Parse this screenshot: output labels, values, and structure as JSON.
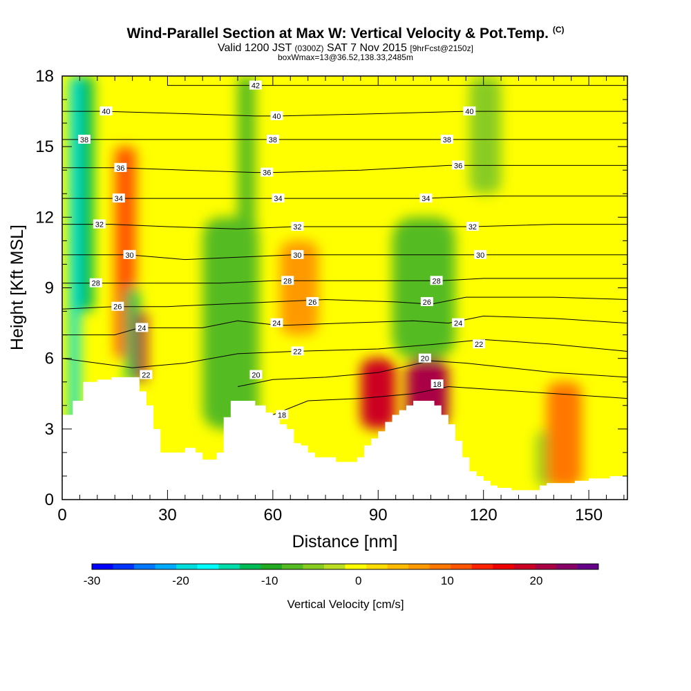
{
  "header": {
    "title": "Wind-Parallel Section at Max W: Vertical Velocity & Pot.Temp.",
    "title_note": "(C)",
    "valid_prefix": "Valid 1200 JST",
    "valid_zulu": "(0300Z)",
    "valid_date": "SAT 7 Nov 2015",
    "forecast": "[9hrFcst@2150z]",
    "box_info": "boxWmax=13@36.52,138.33,2485m"
  },
  "colors": {
    "background": "#ffffff",
    "terrain": "#ffffff",
    "contour_line": "#000000",
    "near_zero": "#ffff00"
  },
  "chart_data": {
    "type": "heatmap",
    "xlabel": "Distance [nm]",
    "ylabel": "Height [Kft MSL]",
    "xlim": [
      0,
      161
    ],
    "ylim": [
      0,
      18
    ],
    "x_ticks": [
      0,
      30,
      60,
      90,
      120,
      150
    ],
    "y_ticks": [
      0,
      3,
      6,
      9,
      12,
      15,
      18
    ],
    "grid": false,
    "field": "Vertical Velocity",
    "overlay": "Potential temperature contours (C)",
    "colorbar": {
      "label": "Vertical Velocity [cm/s]",
      "tick_values": [
        -30,
        -20,
        -10,
        0,
        10,
        20
      ],
      "range": [
        -30,
        27
      ],
      "colors": [
        "#0000ff",
        "#0033ff",
        "#0077ff",
        "#00aaff",
        "#00dddd",
        "#00ffff",
        "#00ddaa",
        "#00bb55",
        "#22aa22",
        "#55bb22",
        "#88cc22",
        "#bbdd22",
        "#ffff00",
        "#ffdd00",
        "#ffbb00",
        "#ff9900",
        "#ff7700",
        "#ff5500",
        "#ff2200",
        "#ee0000",
        "#cc0022",
        "#aa0044",
        "#880066",
        "#660088"
      ]
    },
    "terrain_kft": [
      [
        0,
        3.6
      ],
      [
        3,
        4.2
      ],
      [
        6,
        5.0
      ],
      [
        10,
        5.1
      ],
      [
        14,
        5.2
      ],
      [
        19,
        5.2
      ],
      [
        22,
        4.6
      ],
      [
        24,
        4.0
      ],
      [
        26,
        3.0
      ],
      [
        28,
        2.0
      ],
      [
        32,
        2.0
      ],
      [
        35,
        2.2
      ],
      [
        38,
        2.0
      ],
      [
        40,
        1.7
      ],
      [
        42,
        1.7
      ],
      [
        44,
        2.0
      ],
      [
        46,
        3.5
      ],
      [
        48,
        4.2
      ],
      [
        51,
        4.2
      ],
      [
        55,
        4.0
      ],
      [
        58,
        3.7
      ],
      [
        60,
        3.6
      ],
      [
        62,
        3.2
      ],
      [
        64,
        3.0
      ],
      [
        66,
        2.4
      ],
      [
        68,
        2.3
      ],
      [
        70,
        2.0
      ],
      [
        72,
        1.8
      ],
      [
        74,
        1.8
      ],
      [
        78,
        1.6
      ],
      [
        80,
        1.6
      ],
      [
        82,
        1.6
      ],
      [
        84,
        1.8
      ],
      [
        86,
        2.3
      ],
      [
        88,
        2.6
      ],
      [
        90,
        2.9
      ],
      [
        92,
        3.3
      ],
      [
        94,
        3.6
      ],
      [
        96,
        3.8
      ],
      [
        98,
        4.0
      ],
      [
        100,
        4.2
      ],
      [
        104,
        4.2
      ],
      [
        106,
        4.0
      ],
      [
        108,
        3.6
      ],
      [
        110,
        3.2
      ],
      [
        112,
        2.5
      ],
      [
        114,
        1.8
      ],
      [
        116,
        1.2
      ],
      [
        118,
        1.0
      ],
      [
        120,
        0.8
      ],
      [
        122,
        0.6
      ],
      [
        124,
        0.5
      ],
      [
        126,
        0.5
      ],
      [
        128,
        0.4
      ],
      [
        132,
        0.4
      ],
      [
        134,
        0.4
      ],
      [
        136,
        0.6
      ],
      [
        138,
        0.7
      ],
      [
        142,
        0.7
      ],
      [
        146,
        0.8
      ],
      [
        150,
        0.9
      ],
      [
        156,
        1.0
      ],
      [
        161,
        1.0
      ]
    ],
    "velocity_cells": [
      {
        "x": [
          2,
          5
        ],
        "y": [
          0,
          18
        ],
        "value": -20
      },
      {
        "x": [
          5,
          9
        ],
        "y": [
          8,
          18
        ],
        "value": -12
      },
      {
        "x": [
          15,
          21
        ],
        "y": [
          6,
          15
        ],
        "value": 12
      },
      {
        "x": [
          18,
          22
        ],
        "y": [
          5,
          9
        ],
        "value": -12
      },
      {
        "x": [
          21,
          24
        ],
        "y": [
          5,
          8
        ],
        "value": 22
      },
      {
        "x": [
          40,
          56
        ],
        "y": [
          3,
          12
        ],
        "value": -8
      },
      {
        "x": [
          50,
          55
        ],
        "y": [
          10,
          18
        ],
        "value": -8
      },
      {
        "x": [
          62,
          73
        ],
        "y": [
          7,
          11
        ],
        "value": 6
      },
      {
        "x": [
          85,
          95
        ],
        "y": [
          3,
          6
        ],
        "value": 18
      },
      {
        "x": [
          98,
          110
        ],
        "y": [
          3,
          6
        ],
        "value": 22
      },
      {
        "x": [
          94,
          112
        ],
        "y": [
          6,
          12
        ],
        "value": -8
      },
      {
        "x": [
          116,
          125
        ],
        "y": [
          13,
          18
        ],
        "value": -6
      },
      {
        "x": [
          135,
          145
        ],
        "y": [
          0.5,
          3
        ],
        "value": -6
      },
      {
        "x": [
          138,
          148
        ],
        "y": [
          0.5,
          5
        ],
        "value": 8
      }
    ],
    "theta_contours": [
      {
        "label": "18",
        "points": [
          [
            60,
            3.6
          ],
          [
            70,
            4.2
          ],
          [
            85,
            4.3
          ],
          [
            100,
            4.5
          ],
          [
            110,
            4.8
          ],
          [
            130,
            4.6
          ],
          [
            161,
            4.3
          ]
        ]
      },
      {
        "label": "20",
        "points": [
          [
            50,
            4.8
          ],
          [
            60,
            5.1
          ],
          [
            75,
            5.2
          ],
          [
            90,
            5.4
          ],
          [
            105,
            5.9
          ],
          [
            115,
            5.8
          ],
          [
            140,
            5.4
          ],
          [
            161,
            5.2
          ]
        ]
      },
      {
        "label": "22",
        "points": [
          [
            0,
            6.0
          ],
          [
            20,
            5.6
          ],
          [
            35,
            5.8
          ],
          [
            50,
            6.2
          ],
          [
            66,
            6.3
          ],
          [
            90,
            6.4
          ],
          [
            106,
            6.6
          ],
          [
            120,
            6.8
          ],
          [
            140,
            6.6
          ],
          [
            161,
            6.3
          ]
        ]
      },
      {
        "label": "24",
        "points": [
          [
            0,
            7.0
          ],
          [
            15,
            7.0
          ],
          [
            22,
            7.3
          ],
          [
            40,
            7.3
          ],
          [
            50,
            7.6
          ],
          [
            62,
            7.4
          ],
          [
            80,
            7.5
          ],
          [
            100,
            7.6
          ],
          [
            110,
            7.5
          ],
          [
            120,
            7.8
          ],
          [
            140,
            7.7
          ],
          [
            161,
            7.5
          ]
        ]
      },
      {
        "label": "26",
        "points": [
          [
            0,
            8.1
          ],
          [
            15,
            8.2
          ],
          [
            30,
            8.2
          ],
          [
            45,
            8.3
          ],
          [
            60,
            8.4
          ],
          [
            75,
            8.5
          ],
          [
            95,
            8.4
          ],
          [
            105,
            8.3
          ],
          [
            115,
            8.6
          ],
          [
            140,
            8.6
          ],
          [
            161,
            8.5
          ]
        ]
      },
      {
        "label": "28",
        "points": [
          [
            0,
            9.2
          ],
          [
            10,
            9.2
          ],
          [
            30,
            9.2
          ],
          [
            45,
            9.2
          ],
          [
            60,
            9.3
          ],
          [
            75,
            9.3
          ],
          [
            95,
            9.3
          ],
          [
            108,
            9.3
          ],
          [
            120,
            9.4
          ],
          [
            140,
            9.4
          ],
          [
            161,
            9.4
          ]
        ]
      },
      {
        "label": "30",
        "points": [
          [
            0,
            10.4
          ],
          [
            19,
            10.4
          ],
          [
            35,
            10.2
          ],
          [
            50,
            10.3
          ],
          [
            66,
            10.4
          ],
          [
            85,
            10.4
          ],
          [
            105,
            10.4
          ],
          [
            120,
            10.4
          ],
          [
            140,
            10.4
          ],
          [
            161,
            10.4
          ]
        ]
      },
      {
        "label": "32",
        "points": [
          [
            0,
            11.7
          ],
          [
            14,
            11.7
          ],
          [
            30,
            11.6
          ],
          [
            50,
            11.5
          ],
          [
            66,
            11.6
          ],
          [
            85,
            11.6
          ],
          [
            105,
            11.6
          ],
          [
            117,
            11.6
          ],
          [
            140,
            11.7
          ],
          [
            161,
            11.7
          ]
        ]
      },
      {
        "label": "34",
        "points": [
          [
            0,
            12.8
          ],
          [
            15,
            12.8
          ],
          [
            30,
            12.8
          ],
          [
            50,
            12.8
          ],
          [
            62,
            12.8
          ],
          [
            85,
            12.8
          ],
          [
            103,
            12.8
          ],
          [
            120,
            12.9
          ],
          [
            140,
            12.9
          ],
          [
            161,
            12.9
          ]
        ]
      },
      {
        "label": "36",
        "points": [
          [
            0,
            14.1
          ],
          [
            16,
            14.1
          ],
          [
            35,
            14.0
          ],
          [
            55,
            13.9
          ],
          [
            60,
            13.9
          ],
          [
            85,
            14.0
          ],
          [
            110,
            14.2
          ],
          [
            125,
            14.2
          ],
          [
            161,
            14.2
          ]
        ]
      },
      {
        "label": "38",
        "points": [
          [
            0,
            15.3
          ],
          [
            6,
            15.3
          ],
          [
            30,
            15.3
          ],
          [
            55,
            15.3
          ],
          [
            60,
            15.3
          ],
          [
            85,
            15.3
          ],
          [
            108,
            15.3
          ],
          [
            125,
            15.3
          ],
          [
            161,
            15.3
          ]
        ]
      },
      {
        "label": "40",
        "points": [
          [
            0,
            16.5
          ],
          [
            12,
            16.5
          ],
          [
            35,
            16.4
          ],
          [
            55,
            16.3
          ],
          [
            62,
            16.3
          ],
          [
            90,
            16.4
          ],
          [
            115,
            16.5
          ],
          [
            140,
            16.5
          ],
          [
            161,
            16.5
          ]
        ]
      },
      {
        "label": "42",
        "points": [
          [
            30,
            17.6
          ],
          [
            55,
            17.6
          ],
          [
            70,
            17.6
          ],
          [
            90,
            17.6
          ],
          [
            110,
            17.6
          ],
          [
            161,
            17.6
          ]
        ]
      }
    ],
    "theta_label_positions": [
      {
        "label": "40",
        "x": 12.5,
        "y": 16.5
      },
      {
        "label": "38",
        "x": 6.3,
        "y": 15.3
      },
      {
        "label": "36",
        "x": 16.6,
        "y": 14.1
      },
      {
        "label": "34",
        "x": 16.1,
        "y": 12.8
      },
      {
        "label": "32",
        "x": 10.6,
        "y": 11.7
      },
      {
        "label": "30",
        "x": 19.2,
        "y": 10.4
      },
      {
        "label": "28",
        "x": 9.6,
        "y": 9.2
      },
      {
        "label": "26",
        "x": 15.8,
        "y": 8.2
      },
      {
        "label": "24",
        "x": 22.7,
        "y": 7.3
      },
      {
        "label": "22",
        "x": 23.9,
        "y": 5.3
      },
      {
        "label": "42",
        "x": 55.1,
        "y": 17.6
      },
      {
        "label": "40",
        "x": 61.1,
        "y": 16.3
      },
      {
        "label": "38",
        "x": 60.0,
        "y": 15.3
      },
      {
        "label": "36",
        "x": 58.3,
        "y": 13.9
      },
      {
        "label": "34",
        "x": 61.5,
        "y": 12.8
      },
      {
        "label": "32",
        "x": 67.0,
        "y": 11.6
      },
      {
        "label": "30",
        "x": 67.0,
        "y": 10.4
      },
      {
        "label": "28",
        "x": 64.2,
        "y": 9.3
      },
      {
        "label": "26",
        "x": 71.3,
        "y": 8.4
      },
      {
        "label": "24",
        "x": 61.1,
        "y": 7.5
      },
      {
        "label": "22",
        "x": 67.0,
        "y": 6.3
      },
      {
        "label": "20",
        "x": 55.2,
        "y": 5.3
      },
      {
        "label": "18",
        "x": 62.6,
        "y": 3.6
      },
      {
        "label": "40",
        "x": 116.0,
        "y": 16.5
      },
      {
        "label": "38",
        "x": 109.6,
        "y": 15.3
      },
      {
        "label": "36",
        "x": 112.8,
        "y": 14.2
      },
      {
        "label": "34",
        "x": 103.6,
        "y": 12.8
      },
      {
        "label": "32",
        "x": 116.9,
        "y": 11.6
      },
      {
        "label": "30",
        "x": 119.1,
        "y": 10.4
      },
      {
        "label": "28",
        "x": 106.6,
        "y": 9.3
      },
      {
        "label": "26",
        "x": 103.9,
        "y": 8.4
      },
      {
        "label": "24",
        "x": 112.8,
        "y": 7.5
      },
      {
        "label": "22",
        "x": 118.7,
        "y": 6.6
      },
      {
        "label": "20",
        "x": 103.3,
        "y": 6.0
      },
      {
        "label": "18",
        "x": 106.8,
        "y": 4.9
      }
    ]
  }
}
